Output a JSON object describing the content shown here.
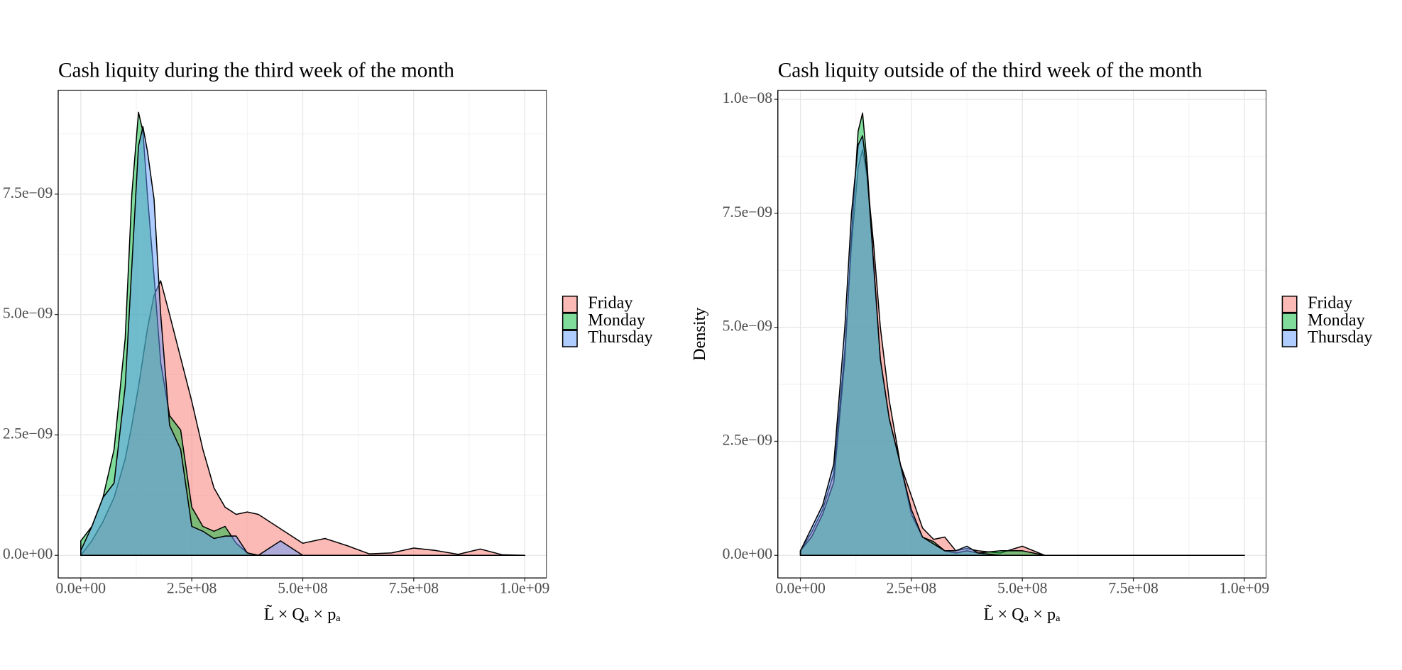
{
  "chart_data": [
    {
      "type": "area",
      "title": "Cash liquity during the third week of the month",
      "x_label": "L̃ × Qₐ × pₐ",
      "x": [
        0,
        25000000,
        50000000,
        75000000,
        100000000,
        115000000,
        130000000,
        140000000,
        150000000,
        165000000,
        180000000,
        200000000,
        225000000,
        250000000,
        275000000,
        300000000,
        325000000,
        350000000,
        375000000,
        400000000,
        450000000,
        500000000,
        550000000,
        600000000,
        650000000,
        700000000,
        750000000,
        800000000,
        850000000,
        900000000,
        950000000,
        1000000000
      ],
      "series": [
        {
          "name": "Friday",
          "color": "#F8766D",
          "values": [
            0,
            3e-10,
            7e-10,
            1.2e-09,
            2e-09,
            2.7e-09,
            3.5e-09,
            4.1e-09,
            4.7e-09,
            5.4e-09,
            5.7e-09,
            5e-09,
            4.1e-09,
            3.2e-09,
            2.2e-09,
            1.4e-09,
            1e-09,
            8.5e-10,
            9e-10,
            8.5e-10,
            5.5e-10,
            2.5e-10,
            3.5e-10,
            2e-10,
            3e-11,
            5e-11,
            1.5e-10,
            1e-10,
            2e-11,
            1.3e-10,
            1e-11,
            0
          ]
        },
        {
          "name": "Monday",
          "color": "#00BA38",
          "values": [
            3e-10,
            6e-10,
            1.2e-09,
            2.2e-09,
            4.5e-09,
            7.5e-09,
            9.2e-09,
            8.8e-09,
            7.5e-09,
            5.8e-09,
            4e-09,
            2.9e-09,
            2.6e-09,
            1e-09,
            6e-10,
            5e-10,
            6e-10,
            2.5e-10,
            5e-11,
            0,
            0,
            0,
            0,
            0,
            0,
            0,
            0,
            0,
            0,
            0,
            0,
            0
          ]
        },
        {
          "name": "Thursday",
          "color": "#619CFF",
          "values": [
            1e-10,
            6e-10,
            1.2e-09,
            1.5e-09,
            3.5e-09,
            6e-09,
            8.5e-09,
            8.9e-09,
            8.4e-09,
            7.4e-09,
            5e-09,
            2.7e-09,
            2.2e-09,
            6e-10,
            5e-10,
            3.5e-10,
            4e-10,
            4e-10,
            5e-11,
            0,
            3e-10,
            0,
            0,
            0,
            0,
            0,
            0,
            0,
            0,
            0,
            0,
            0
          ]
        }
      ],
      "xlim": [
        -50900000,
        1048900000
      ],
      "ylim": [
        -4.69e-10,
        9.656e-09
      ],
      "xticks": [
        {
          "value": 0,
          "label": "0.0e+00"
        },
        {
          "value": 250000000,
          "label": "2.5e+08"
        },
        {
          "value": 500000000,
          "label": "5.0e+08"
        },
        {
          "value": 750000000,
          "label": "7.5e+08"
        },
        {
          "value": 1000000000,
          "label": "1.0e+09"
        }
      ],
      "yticks": [
        {
          "value": 0,
          "label": "0.0e+00"
        },
        {
          "value": 2.5e-09,
          "label": "2.5e−09"
        },
        {
          "value": 5e-09,
          "label": "5.0e−09"
        },
        {
          "value": 7.5e-09,
          "label": "7.5e−09"
        }
      ],
      "grid": true,
      "legend": "right"
    },
    {
      "type": "area",
      "title": "Cash liquity outside of the third week of the month",
      "x_label": "L̃ × Qₐ × pₐ",
      "y_label": "Density",
      "x": [
        0,
        25000000,
        50000000,
        75000000,
        100000000,
        115000000,
        130000000,
        140000000,
        150000000,
        165000000,
        180000000,
        200000000,
        225000000,
        250000000,
        275000000,
        300000000,
        325000000,
        350000000,
        375000000,
        400000000,
        450000000,
        500000000,
        550000000,
        600000000,
        650000000,
        700000000,
        750000000,
        800000000,
        850000000,
        900000000,
        950000000,
        1000000000
      ],
      "series": [
        {
          "name": "Friday",
          "color": "#F8766D",
          "values": [
            1e-10,
            5e-10,
            1e-09,
            1.8e-09,
            4.5e-09,
            6.8e-09,
            8.5e-09,
            8.9e-09,
            8.3e-09,
            6.8e-09,
            5e-09,
            3.4e-09,
            2e-09,
            1.3e-09,
            6e-10,
            3.5e-10,
            4e-10,
            1e-10,
            1.5e-10,
            1e-10,
            5e-11,
            2e-10,
            0,
            0,
            0,
            0,
            0,
            0,
            0,
            0,
            0,
            0
          ]
        },
        {
          "name": "Monday",
          "color": "#00BA38",
          "values": [
            1e-10,
            4e-10,
            9e-10,
            1.6e-09,
            4.3e-09,
            7e-09,
            9.3e-09,
            9.7e-09,
            8.6e-09,
            6.3e-09,
            4.3e-09,
            3e-09,
            2e-09,
            9e-10,
            4e-10,
            3e-10,
            1e-10,
            5e-11,
            1e-10,
            5e-11,
            1e-10,
            1e-10,
            0,
            0,
            0,
            0,
            0,
            0,
            0,
            0,
            0,
            0
          ]
        },
        {
          "name": "Thursday",
          "color": "#619CFF",
          "values": [
            1e-10,
            6e-10,
            1.1e-09,
            2e-09,
            5e-09,
            7.5e-09,
            9e-09,
            9.2e-09,
            8.4e-09,
            6.4e-09,
            4.3e-09,
            3e-09,
            2e-09,
            1e-09,
            4e-10,
            2.5e-10,
            1e-10,
            1e-10,
            2e-10,
            5e-11,
            0,
            0,
            0,
            0,
            0,
            0,
            0,
            0,
            0,
            0,
            0,
            0
          ]
        }
      ],
      "xlim": [
        -50900000,
        1048900000
      ],
      "ylim": [
        -4.95e-10,
        1.0198e-08
      ],
      "xticks": [
        {
          "value": 0,
          "label": "0.0e+00"
        },
        {
          "value": 250000000,
          "label": "2.5e+08"
        },
        {
          "value": 500000000,
          "label": "5.0e+08"
        },
        {
          "value": 750000000,
          "label": "7.5e+08"
        },
        {
          "value": 1000000000,
          "label": "1.0e+09"
        }
      ],
      "yticks": [
        {
          "value": 0,
          "label": "0.0e+00"
        },
        {
          "value": 2.5e-09,
          "label": "2.5e−09"
        },
        {
          "value": 5e-09,
          "label": "5.0e−09"
        },
        {
          "value": 7.5e-09,
          "label": "7.5e−09"
        },
        {
          "value": 1e-08,
          "label": "1.0e−08"
        }
      ],
      "grid": true,
      "legend": "right"
    }
  ]
}
